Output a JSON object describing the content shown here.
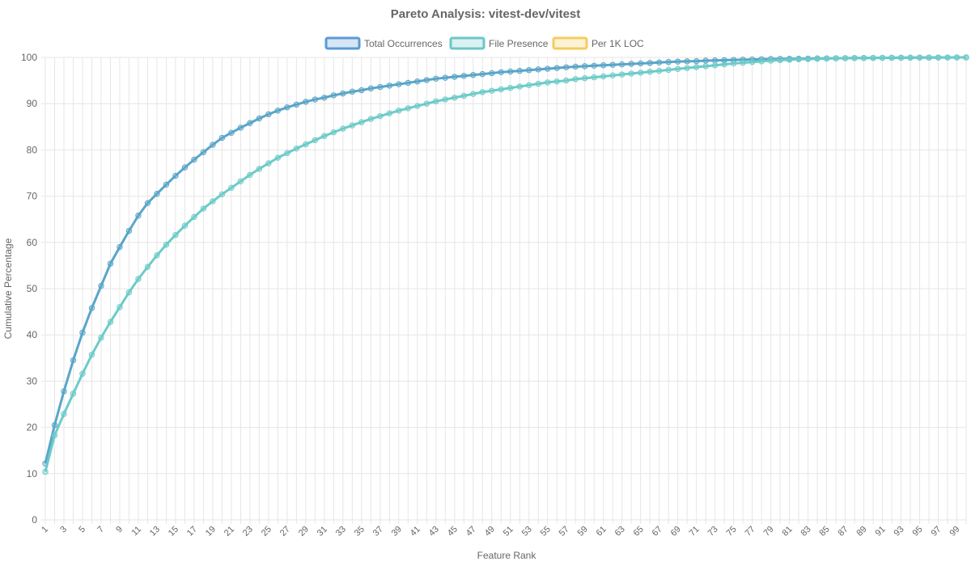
{
  "chart_data": {
    "type": "line",
    "title": "Pareto Analysis: vitest-dev/vitest",
    "xlabel": "Feature Rank",
    "ylabel": "Cumulative Percentage",
    "ylim": [
      0,
      100
    ],
    "yticks": [
      0,
      10,
      20,
      30,
      40,
      50,
      60,
      70,
      80,
      90,
      100
    ],
    "x_range": [
      1,
      100
    ],
    "x_tick_labels": [
      "1",
      "3",
      "5",
      "7",
      "9",
      "11",
      "13",
      "15",
      "17",
      "19",
      "21",
      "23",
      "25",
      "27",
      "29",
      "31",
      "33",
      "35",
      "37",
      "39",
      "41",
      "43",
      "45",
      "47",
      "49",
      "51",
      "53",
      "55",
      "57",
      "59",
      "61",
      "63",
      "65",
      "67",
      "69",
      "71",
      "73",
      "75",
      "77",
      "79",
      "81",
      "83",
      "85",
      "87",
      "89",
      "91",
      "93",
      "95",
      "97",
      "99"
    ],
    "legend_position": "top-center",
    "grid": true,
    "series": [
      {
        "name": "Total Occurrences",
        "color": "#5b9bd5",
        "line_color": "#5aa5c8",
        "values": [
          12.2,
          20.5,
          27.8,
          34.5,
          40.5,
          45.8,
          50.6,
          55.4,
          59.0,
          62.5,
          65.8,
          68.5,
          70.5,
          72.5,
          74.4,
          76.2,
          77.9,
          79.5,
          81.1,
          82.6,
          83.7,
          84.8,
          85.8,
          86.8,
          87.7,
          88.5,
          89.2,
          89.8,
          90.4,
          90.9,
          91.3,
          91.8,
          92.2,
          92.6,
          92.9,
          93.3,
          93.6,
          93.9,
          94.2,
          94.5,
          94.8,
          95.1,
          95.4,
          95.6,
          95.8,
          96.0,
          96.2,
          96.4,
          96.6,
          96.8,
          96.95,
          97.1,
          97.25,
          97.4,
          97.55,
          97.7,
          97.85,
          98.0,
          98.1,
          98.2,
          98.3,
          98.4,
          98.5,
          98.6,
          98.7,
          98.8,
          98.9,
          99.0,
          99.1,
          99.15,
          99.2,
          99.3,
          99.35,
          99.4,
          99.45,
          99.5,
          99.55,
          99.6,
          99.65,
          99.68,
          99.7,
          99.72,
          99.75,
          99.78,
          99.8,
          99.82,
          99.84,
          99.86,
          99.88,
          99.9,
          99.91,
          99.92,
          99.93,
          99.94,
          99.95,
          99.96,
          99.97,
          99.98,
          99.99,
          100.0
        ]
      },
      {
        "name": "File Presence",
        "color": "#6cc7c7",
        "line_color": "#6ccbc8",
        "values": [
          10.4,
          18.3,
          22.9,
          27.3,
          31.6,
          35.7,
          39.4,
          42.8,
          46.0,
          49.2,
          52.1,
          54.7,
          57.2,
          59.5,
          61.6,
          63.6,
          65.5,
          67.3,
          68.9,
          70.4,
          71.8,
          73.2,
          74.6,
          75.9,
          77.1,
          78.3,
          79.3,
          80.3,
          81.2,
          82.1,
          83.0,
          83.8,
          84.6,
          85.3,
          86.0,
          86.7,
          87.3,
          87.9,
          88.5,
          89.0,
          89.5,
          90.0,
          90.5,
          90.9,
          91.3,
          91.7,
          92.1,
          92.5,
          92.8,
          93.1,
          93.4,
          93.7,
          94.0,
          94.3,
          94.6,
          94.8,
          95.0,
          95.3,
          95.5,
          95.7,
          95.9,
          96.1,
          96.3,
          96.5,
          96.7,
          96.9,
          97.1,
          97.3,
          97.5,
          97.7,
          97.9,
          98.1,
          98.3,
          98.5,
          98.7,
          98.85,
          99.0,
          99.15,
          99.3,
          99.4,
          99.5,
          99.6,
          99.65,
          99.7,
          99.75,
          99.8,
          99.83,
          99.86,
          99.88,
          99.9,
          99.92,
          99.94,
          99.95,
          99.96,
          99.97,
          99.98,
          99.99,
          99.995,
          100.0,
          100.0
        ]
      },
      {
        "name": "Per 1K LOC",
        "color": "#f5cc5c",
        "values": []
      }
    ]
  }
}
